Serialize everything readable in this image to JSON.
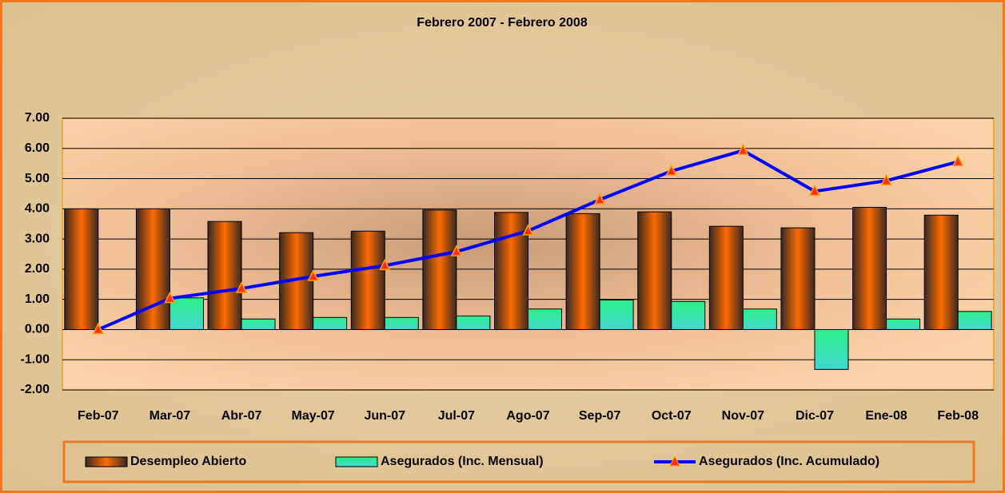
{
  "chart_data": {
    "type": "bar-line",
    "title": "Febrero 2007 - Febrero 2008",
    "categories": [
      "Feb-07",
      "Mar-07",
      "Abr-07",
      "May-07",
      "Jun-07",
      "Jul-07",
      "Ago-07",
      "Sep-07",
      "Oct-07",
      "Nov-07",
      "Dic-07",
      "Ene-08",
      "Feb-08"
    ],
    "series": [
      {
        "name": "Desempleo Abierto",
        "type": "bar",
        "color": "#ff6a00",
        "values": [
          4.0,
          4.0,
          3.58,
          3.21,
          3.26,
          3.96,
          3.88,
          3.84,
          3.9,
          3.42,
          3.37,
          4.05,
          3.79
        ]
      },
      {
        "name": "Asegurados (Inc. Mensual)",
        "type": "bar",
        "color": "#33e8a0",
        "values": [
          0,
          1.05,
          0.35,
          0.4,
          0.4,
          0.45,
          0.68,
          0.98,
          0.93,
          0.68,
          -1.32,
          0.35,
          0.6
        ]
      },
      {
        "name": "Asegurados (Inc. Acumulado)",
        "type": "line",
        "color": "#0000ff",
        "values": [
          0,
          1.03,
          1.36,
          1.76,
          2.12,
          2.58,
          3.27,
          4.3,
          5.25,
          5.93,
          4.58,
          4.93,
          5.56
        ]
      }
    ],
    "ylim": [
      -2,
      7
    ],
    "yticks": [
      {
        "value": -2,
        "label": "-2.00"
      },
      {
        "value": -1,
        "label": "-1.00"
      },
      {
        "value": 0,
        "label": "0.00"
      },
      {
        "value": 1,
        "label": "1.00"
      },
      {
        "value": 2,
        "label": "2.00"
      },
      {
        "value": 3,
        "label": "3.00"
      },
      {
        "value": 4,
        "label": "4.00"
      },
      {
        "value": 5,
        "label": "5.00"
      },
      {
        "value": 6,
        "label": "6.00"
      },
      {
        "value": 7,
        "label": "7.00"
      }
    ],
    "grid": true,
    "legend": "bottom"
  }
}
